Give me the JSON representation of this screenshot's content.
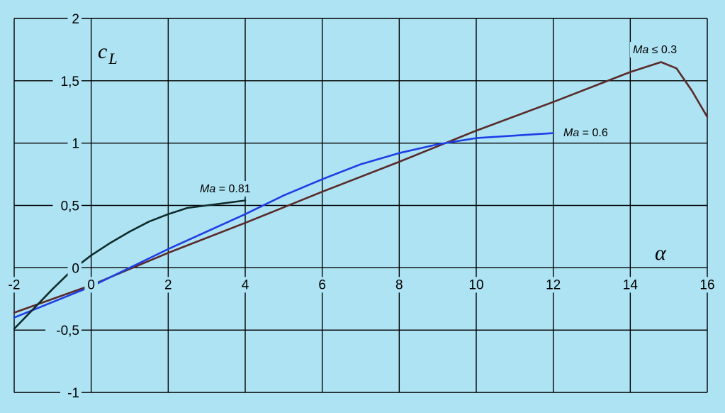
{
  "chart_data": {
    "type": "line",
    "title": "",
    "xlabel": "α",
    "ylabel": "c_L",
    "ylabel_main": "c",
    "ylabel_sub": "L",
    "xlim": [
      -2,
      16
    ],
    "ylim": [
      -1,
      2
    ],
    "x_ticks": [
      -2,
      0,
      2,
      4,
      6,
      8,
      10,
      12,
      14,
      16
    ],
    "x_tick_labels": [
      "-2",
      "0",
      "2",
      "4",
      "6",
      "8",
      "10",
      "12",
      "14",
      "16"
    ],
    "y_ticks": [
      -1,
      -0.5,
      0,
      0.5,
      1,
      1.5,
      2
    ],
    "y_tick_labels": [
      "-1",
      "-0,5",
      "0",
      "0,5",
      "1",
      "1,5",
      "2"
    ],
    "grid": true,
    "legend": "inline",
    "background_color": "#aee3f3",
    "series": [
      {
        "name": "Ma ≤ 0.3",
        "name_var": "Ma",
        "name_rest": " ≤ 0.3",
        "color": "#5a2a2a",
        "x": [
          -2,
          0,
          2,
          4,
          6,
          8,
          10,
          12,
          14,
          14.5,
          14.8,
          15.2,
          15.6,
          16
        ],
        "y": [
          -0.36,
          -0.14,
          0.12,
          0.36,
          0.61,
          0.85,
          1.1,
          1.33,
          1.57,
          1.62,
          1.65,
          1.6,
          1.42,
          1.21
        ]
      },
      {
        "name": "Ma = 0.6",
        "name_var": "Ma",
        "name_rest": " = 0.6",
        "color": "#1e3ee6",
        "x": [
          -2,
          0,
          2,
          4,
          5,
          6,
          7,
          8,
          9,
          10,
          11,
          12
        ],
        "y": [
          -0.4,
          -0.15,
          0.15,
          0.43,
          0.58,
          0.71,
          0.83,
          0.92,
          0.99,
          1.04,
          1.06,
          1.08
        ]
      },
      {
        "name": "Ma = 0.81",
        "name_var": "Ma",
        "name_rest": " = 0.81",
        "color": "#0f2b2b",
        "x": [
          -2,
          -1.5,
          -1,
          -0.5,
          0,
          0.5,
          1,
          1.5,
          2,
          2.5,
          3,
          3.5,
          4
        ],
        "y": [
          -0.49,
          -0.33,
          -0.17,
          -0.02,
          0.1,
          0.2,
          0.29,
          0.37,
          0.43,
          0.48,
          0.5,
          0.52,
          0.54
        ]
      }
    ]
  }
}
